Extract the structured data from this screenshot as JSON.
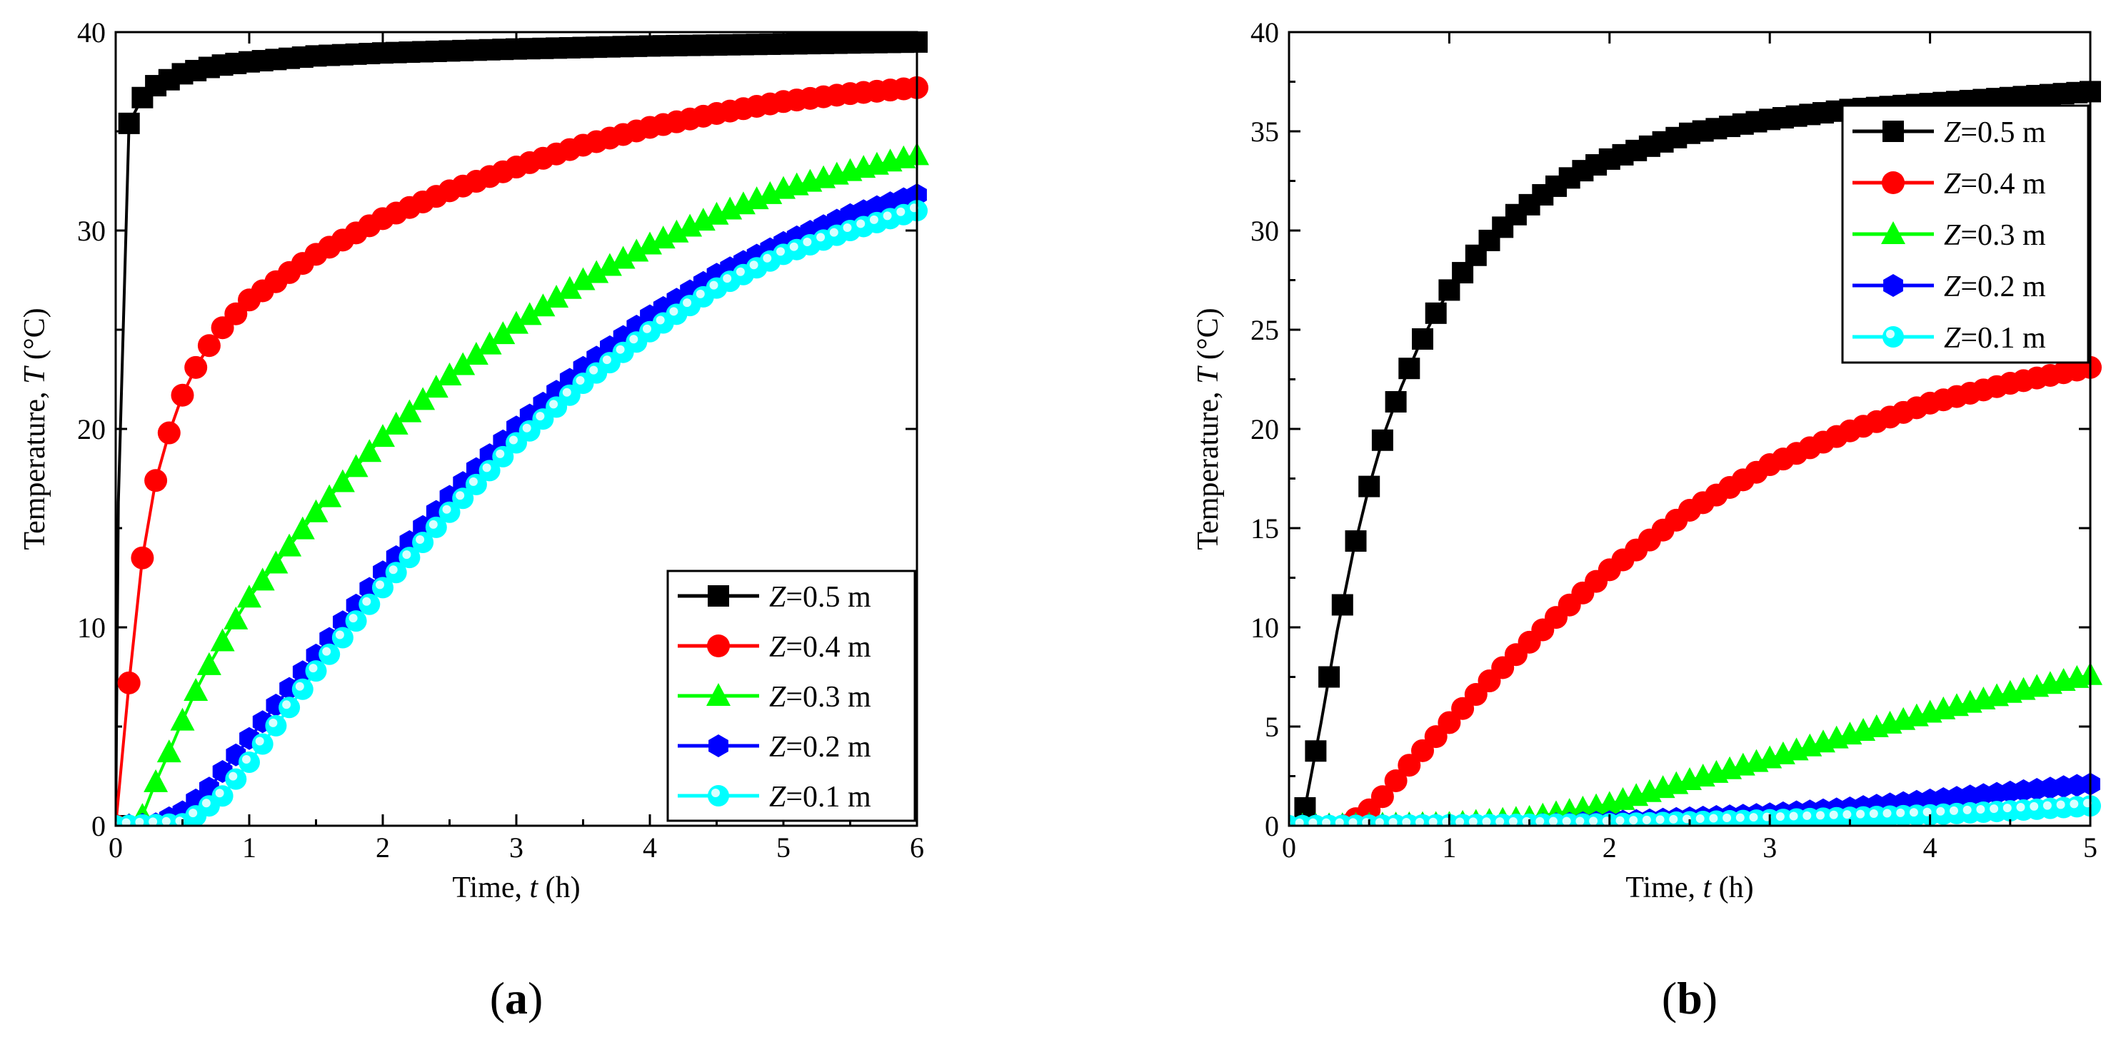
{
  "panels": [
    {
      "label": "(a)",
      "chart_data": {
        "type": "line",
        "xlabel_text": "Time, ",
        "xlabel_var": "t",
        "xlabel_unit": " (h)",
        "ylabel_text": "Temperature, ",
        "ylabel_var": "T",
        "ylabel_unit": " (°C)",
        "xlim": [
          0,
          6
        ],
        "ylim": [
          0,
          40
        ],
        "xticks": [
          0,
          1,
          2,
          3,
          4,
          5,
          6
        ],
        "yticks": [
          0,
          10,
          20,
          30,
          40
        ],
        "grid": false,
        "legend_position": "bottom-right",
        "series": [
          {
            "name": "Z=0.5 m",
            "marker": "square",
            "color": "#000000",
            "points": [
              [
                0,
                0
              ],
              [
                0.02,
                16.3
              ],
              [
                0.1,
                35.4
              ],
              [
                0.2,
                36.7
              ],
              [
                0.3,
                37.3
              ],
              [
                0.5,
                37.9
              ],
              [
                0.75,
                38.3
              ],
              [
                1,
                38.5
              ],
              [
                1.5,
                38.8
              ],
              [
                2,
                38.95
              ],
              [
                3,
                39.15
              ],
              [
                4,
                39.3
              ],
              [
                5,
                39.4
              ],
              [
                6,
                39.5
              ]
            ]
          },
          {
            "name": "Z=0.4 m",
            "marker": "circle",
            "color": "#ff0000",
            "points": [
              [
                0,
                0
              ],
              [
                0.1,
                7.2
              ],
              [
                0.2,
                13.5
              ],
              [
                0.3,
                17.4
              ],
              [
                0.4,
                19.8
              ],
              [
                0.5,
                21.7
              ],
              [
                0.6,
                23.1
              ],
              [
                0.7,
                24.2
              ],
              [
                0.8,
                25.1
              ],
              [
                1,
                26.5
              ],
              [
                1.5,
                28.8
              ],
              [
                2,
                30.6
              ],
              [
                2.5,
                32
              ],
              [
                3,
                33.2
              ],
              [
                3.5,
                34.3
              ],
              [
                4,
                35.2
              ],
              [
                4.5,
                35.9
              ],
              [
                5,
                36.5
              ],
              [
                5.5,
                36.9
              ],
              [
                6,
                37.2
              ]
            ]
          },
          {
            "name": "Z=0.3 m",
            "marker": "triangle",
            "color": "#00ff00",
            "points": [
              [
                0.1,
                0
              ],
              [
                0.2,
                0.5
              ],
              [
                0.3,
                2.2
              ],
              [
                0.4,
                3.7
              ],
              [
                0.5,
                5.3
              ],
              [
                0.6,
                6.8
              ],
              [
                0.7,
                8.1
              ],
              [
                0.8,
                9.3
              ],
              [
                1,
                11.5
              ],
              [
                1.5,
                15.8
              ],
              [
                2,
                19.6
              ],
              [
                2.5,
                22.7
              ],
              [
                3,
                25.3
              ],
              [
                3.5,
                27.5
              ],
              [
                4,
                29.3
              ],
              [
                4.5,
                30.8
              ],
              [
                5,
                32.1
              ],
              [
                5.5,
                33
              ],
              [
                6,
                33.8
              ]
            ]
          },
          {
            "name": "Z=0.2 m",
            "marker": "hexagon",
            "color": "#0000ff",
            "points": [
              [
                0,
                0
              ],
              [
                0.3,
                0.1
              ],
              [
                0.5,
                0.7
              ],
              [
                0.7,
                1.9
              ],
              [
                1,
                4.4
              ],
              [
                1.5,
                8.6
              ],
              [
                2,
                12.8
              ],
              [
                2.5,
                16.6
              ],
              [
                3,
                20.1
              ],
              [
                3.5,
                23.1
              ],
              [
                4,
                25.7
              ],
              [
                4.5,
                27.8
              ],
              [
                5,
                29.4
              ],
              [
                5.5,
                30.8
              ],
              [
                6,
                31.8
              ]
            ]
          },
          {
            "name": "Z=0.1 m",
            "marker": "sphere",
            "color": "#00ffff",
            "points": [
              [
                0,
                0
              ],
              [
                0.5,
                0.1
              ],
              [
                0.6,
                0.5
              ],
              [
                0.8,
                1.5
              ],
              [
                1,
                3.2
              ],
              [
                1.5,
                7.8
              ],
              [
                2,
                12
              ],
              [
                2.5,
                15.8
              ],
              [
                3,
                19.3
              ],
              [
                3.5,
                22.3
              ],
              [
                4,
                24.9
              ],
              [
                4.5,
                27.1
              ],
              [
                5,
                28.8
              ],
              [
                5.5,
                30
              ],
              [
                6,
                31
              ]
            ]
          }
        ]
      }
    },
    {
      "label": "(b)",
      "chart_data": {
        "type": "line",
        "xlabel_text": "Time, ",
        "xlabel_var": "t",
        "xlabel_unit": " (h)",
        "ylabel_text": "Temperature, ",
        "ylabel_var": "T",
        "ylabel_unit": " (°C)",
        "xlim": [
          0,
          5
        ],
        "ylim": [
          0,
          40
        ],
        "xticks": [
          0,
          1,
          2,
          3,
          4,
          5
        ],
        "yticks": [
          0,
          5,
          10,
          15,
          20,
          25,
          30,
          35,
          40
        ],
        "grid": false,
        "legend_position": "top-right",
        "series": [
          {
            "name": "Z=0.5 m",
            "marker": "square",
            "color": "#000000",
            "points": [
              [
                0.1,
                0.9
              ],
              [
                0.2,
                5.2
              ],
              [
                0.3,
                9.8
              ],
              [
                0.4,
                13.8
              ],
              [
                0.5,
                17.1
              ],
              [
                0.6,
                19.9
              ],
              [
                0.7,
                22.1
              ],
              [
                0.8,
                24
              ],
              [
                0.9,
                25.6
              ],
              [
                1,
                27
              ],
              [
                1.2,
                29.1
              ],
              [
                1.4,
                30.7
              ],
              [
                1.6,
                31.9
              ],
              [
                1.8,
                32.9
              ],
              [
                2,
                33.6
              ],
              [
                2.5,
                34.9
              ],
              [
                3,
                35.6
              ],
              [
                3.5,
                36.1
              ],
              [
                4,
                36.4
              ],
              [
                4.5,
                36.7
              ],
              [
                5,
                37
              ]
            ]
          },
          {
            "name": "Z=0.4 m",
            "marker": "circle",
            "color": "#ff0000",
            "points": [
              [
                0.35,
                0
              ],
              [
                0.5,
                0.8
              ],
              [
                0.6,
                1.6
              ],
              [
                0.7,
                2.6
              ],
              [
                0.8,
                3.5
              ],
              [
                1,
                5.2
              ],
              [
                1.2,
                6.9
              ],
              [
                1.4,
                8.5
              ],
              [
                1.6,
                10
              ],
              [
                1.8,
                11.5
              ],
              [
                2,
                12.9
              ],
              [
                2.5,
                15.9
              ],
              [
                3,
                18.2
              ],
              [
                3.5,
                19.9
              ],
              [
                4,
                21.3
              ],
              [
                4.5,
                22.3
              ],
              [
                5,
                23.1
              ]
            ]
          },
          {
            "name": "Z=0.3 m",
            "marker": "triangle",
            "color": "#00ff00",
            "points": [
              [
                0,
                0
              ],
              [
                1,
                0.1
              ],
              [
                1.5,
                0.4
              ],
              [
                2,
                1.1
              ],
              [
                2.5,
                2.3
              ],
              [
                3,
                3.4
              ],
              [
                3.5,
                4.6
              ],
              [
                4,
                5.7
              ],
              [
                4.5,
                6.7
              ],
              [
                5,
                7.6
              ]
            ]
          },
          {
            "name": "Z=0.2 m",
            "marker": "hexagon",
            "color": "#0000ff",
            "points": [
              [
                0,
                0
              ],
              [
                1.5,
                0.05
              ],
              [
                2,
                0.2
              ],
              [
                3,
                0.6
              ],
              [
                3.5,
                0.9
              ],
              [
                4,
                1.3
              ],
              [
                4.5,
                1.7
              ],
              [
                5,
                2.1
              ]
            ]
          },
          {
            "name": "Z=0.1 m",
            "marker": "sphere",
            "color": "#00ffff",
            "points": [
              [
                0,
                0
              ],
              [
                2,
                0.1
              ],
              [
                3,
                0.3
              ],
              [
                4,
                0.55
              ],
              [
                4.5,
                0.75
              ],
              [
                5,
                1.0
              ]
            ]
          }
        ]
      }
    }
  ]
}
